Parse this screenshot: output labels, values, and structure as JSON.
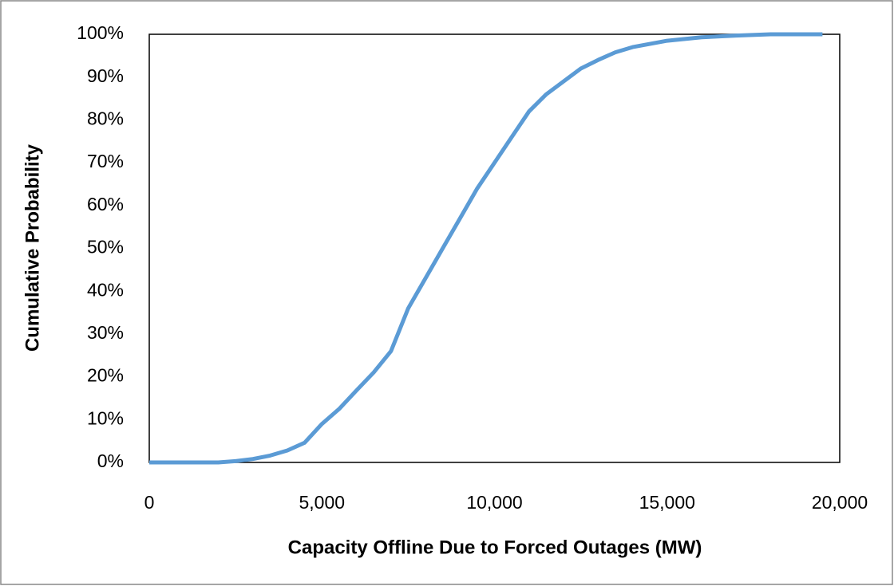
{
  "chart_data": {
    "type": "line",
    "xlabel": "Capacity Offline Due to Forced Outages (MW)",
    "ylabel": "Cumulative Probability",
    "x": [
      0,
      1000,
      2000,
      2500,
      3000,
      3500,
      4000,
      4500,
      5000,
      5500,
      6000,
      6500,
      7000,
      7500,
      8000,
      8500,
      9000,
      9500,
      10000,
      10500,
      11000,
      11500,
      12000,
      12500,
      13000,
      13500,
      14000,
      15000,
      16000,
      17000,
      18000,
      19500
    ],
    "series": [
      {
        "name": "Cumulative Probability",
        "color": "#5b9bd5",
        "values": [
          0,
          0,
          0,
          0.3,
          0.8,
          1.6,
          2.8,
          4.6,
          9,
          12.5,
          16.8,
          21,
          26,
          36,
          43,
          50,
          57,
          64,
          70,
          76,
          82,
          86,
          89,
          92,
          94,
          95.8,
          97,
          98.5,
          99.3,
          99.7,
          100,
          100
        ]
      }
    ],
    "xlim": [
      0,
      20000
    ],
    "xticks": [
      0,
      {
        "value": 5000,
        "label": "5,000"
      },
      {
        "value": 10000,
        "label": "10,000"
      },
      {
        "value": 15000,
        "label": "15,000"
      },
      {
        "value": 20000,
        "label": "20,000"
      }
    ],
    "ylim": [
      0,
      100
    ],
    "yticks": [
      {
        "value": 0,
        "label": "0%"
      },
      {
        "value": 10,
        "label": "10%"
      },
      {
        "value": 20,
        "label": "20%"
      },
      {
        "value": 30,
        "label": "30%"
      },
      {
        "value": 40,
        "label": "40%"
      },
      {
        "value": 50,
        "label": "50%"
      },
      {
        "value": 60,
        "label": "60%"
      },
      {
        "value": 70,
        "label": "70%"
      },
      {
        "value": 80,
        "label": "80%"
      },
      {
        "value": 90,
        "label": "90%"
      },
      {
        "value": 100,
        "label": "100%"
      }
    ],
    "grid": false
  }
}
